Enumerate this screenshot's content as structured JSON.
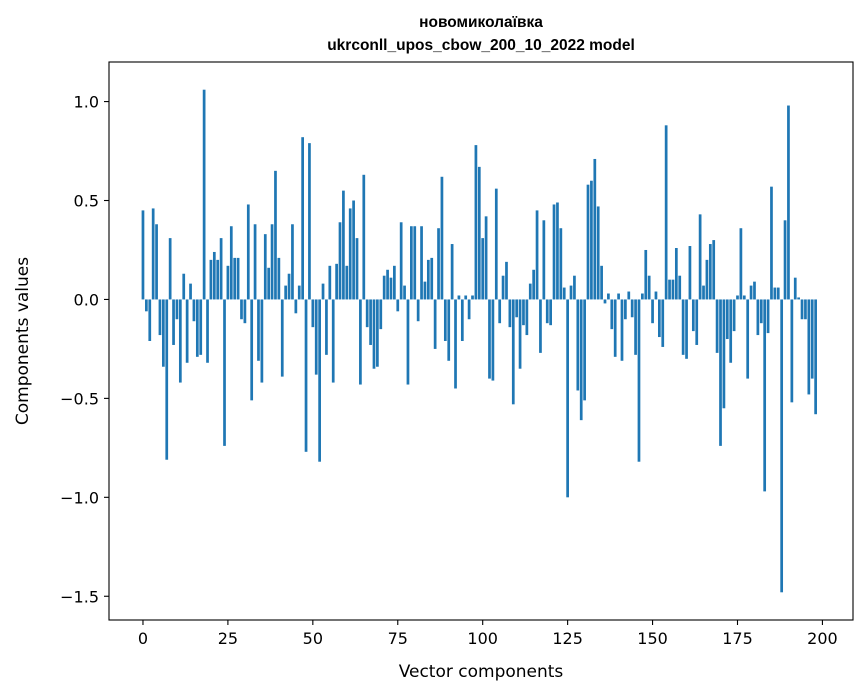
{
  "chart_data": {
    "type": "bar",
    "title": "новомиколаївка",
    "subtitle": "ukrconll_upos_cbow_200_10_2022 model",
    "xlabel": "Vector components",
    "ylabel": "Components values",
    "xlim": [
      -10,
      209
    ],
    "ylim": [
      -1.62,
      1.2
    ],
    "xticks": [
      0,
      25,
      50,
      75,
      100,
      125,
      150,
      175,
      200
    ],
    "yticks": [
      -1.5,
      -1.0,
      -0.5,
      0.0,
      0.5,
      1.0
    ],
    "xtick_labels": [
      "0",
      "25",
      "50",
      "75",
      "100",
      "125",
      "150",
      "175",
      "200"
    ],
    "ytick_labels": [
      "−1.5",
      "−1.0",
      "−0.5",
      "0.0",
      "0.5",
      "1.0"
    ],
    "bar_color": "#1f77b4",
    "grid": false,
    "legend": "none",
    "values": [
      0.45,
      -0.06,
      -0.21,
      0.46,
      0.38,
      -0.18,
      -0.34,
      -0.81,
      0.31,
      -0.23,
      -0.1,
      -0.42,
      0.13,
      -0.32,
      0.08,
      -0.11,
      -0.29,
      -0.28,
      1.06,
      -0.32,
      0.2,
      0.24,
      0.2,
      0.31,
      -0.74,
      0.17,
      0.37,
      0.21,
      0.21,
      -0.1,
      -0.12,
      0.48,
      -0.51,
      0.38,
      -0.31,
      -0.42,
      0.33,
      0.16,
      0.38,
      0.65,
      0.21,
      -0.39,
      0.07,
      0.13,
      0.38,
      -0.07,
      0.07,
      0.82,
      -0.77,
      0.79,
      -0.14,
      -0.38,
      -0.82,
      0.08,
      -0.28,
      0.17,
      -0.42,
      0.18,
      0.39,
      0.55,
      0.17,
      0.46,
      0.5,
      0.31,
      -0.43,
      0.63,
      -0.14,
      -0.23,
      -0.35,
      -0.34,
      -0.15,
      0.12,
      0.15,
      0.11,
      0.17,
      -0.06,
      0.39,
      0.07,
      -0.43,
      0.37,
      0.37,
      -0.11,
      0.37,
      0.09,
      0.2,
      0.21,
      -0.25,
      0.36,
      0.62,
      -0.21,
      -0.31,
      0.28,
      -0.45,
      0.02,
      -0.21,
      0.02,
      -0.1,
      0.02,
      0.78,
      0.67,
      0.31,
      0.42,
      -0.4,
      -0.41,
      0.56,
      -0.12,
      0.12,
      0.19,
      -0.14,
      -0.53,
      -0.09,
      -0.35,
      -0.13,
      -0.18,
      0.08,
      0.15,
      0.45,
      -0.27,
      0.4,
      -0.12,
      -0.13,
      0.48,
      0.49,
      0.36,
      0.06,
      -1.0,
      0.07,
      0.12,
      -0.46,
      -0.61,
      -0.51,
      0.58,
      0.6,
      0.71,
      0.47,
      0.17,
      -0.02,
      0.03,
      -0.15,
      -0.29,
      0.03,
      -0.31,
      -0.1,
      0.04,
      -0.09,
      -0.28,
      -0.82,
      0.03,
      0.25,
      0.12,
      -0.12,
      0.04,
      -0.19,
      -0.24,
      0.88,
      0.1,
      0.1,
      0.26,
      0.12,
      -0.28,
      -0.3,
      0.27,
      -0.16,
      -0.23,
      0.43,
      0.07,
      0.2,
      0.28,
      0.3,
      -0.27,
      -0.74,
      -0.55,
      -0.2,
      -0.32,
      -0.16,
      0.02,
      0.36,
      0.02,
      -0.4,
      0.07,
      0.09,
      -0.18,
      -0.12,
      -0.97,
      -0.17,
      0.57,
      0.06,
      0.06,
      -1.48,
      0.4,
      0.98,
      -0.52,
      0.11,
      0.01,
      -0.1,
      -0.1,
      -0.48,
      -0.4,
      -0.58
    ]
  }
}
